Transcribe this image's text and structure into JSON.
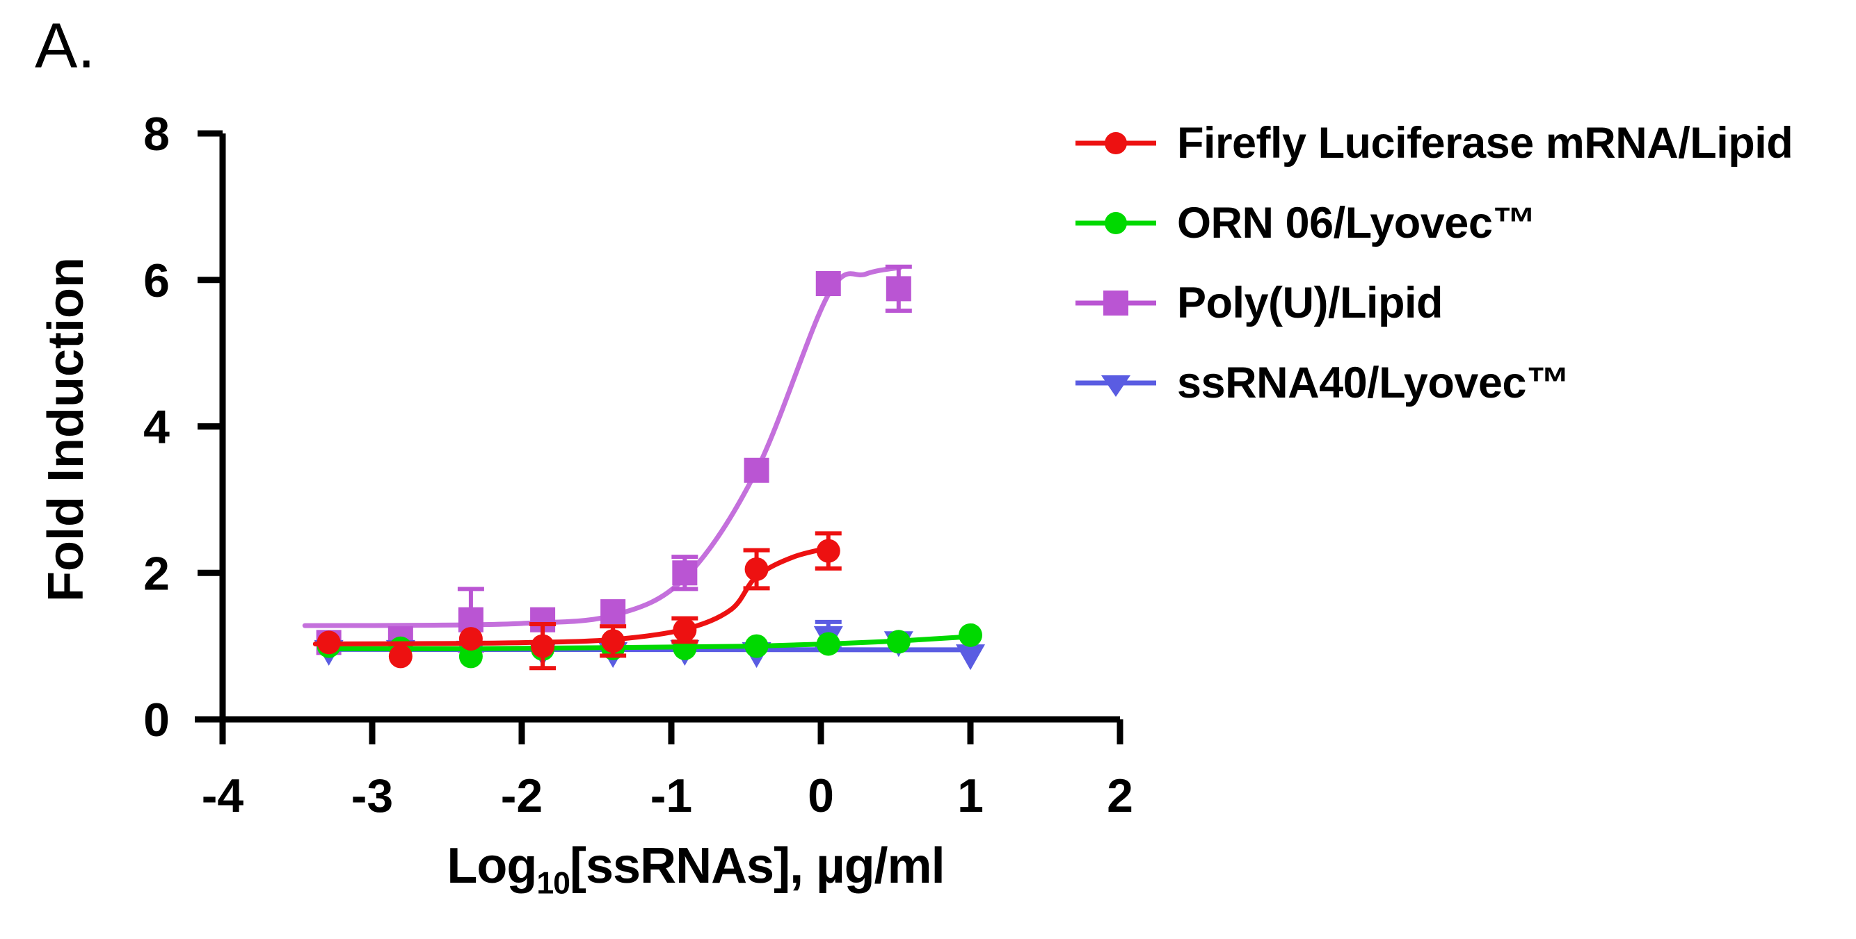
{
  "figure": {
    "panel_label": "A.",
    "background": "#ffffff"
  },
  "chart_data": {
    "type": "scatter",
    "title": "",
    "ylabel": "Fold Induction",
    "xlabel_parts": {
      "prefix": "Log",
      "sub": "10",
      "suffix": "[ssRNAs], µg/ml"
    },
    "x_axis": {
      "min": -4,
      "max": 2,
      "ticks": [
        -4,
        -3,
        -2,
        -1,
        0,
        1,
        2
      ]
    },
    "y_axis": {
      "min": 0,
      "max": 8,
      "ticks": [
        0,
        2,
        4,
        6,
        8
      ]
    },
    "grid": false,
    "legend_position": "right",
    "series": [
      {
        "name": "Firefly Luciferase mRNA/Lipid",
        "color": "#ED1111",
        "marker": "circle",
        "x": [
          -3.29,
          -2.81,
          -2.34,
          -1.86,
          -1.39,
          -0.91,
          -0.43,
          0.05
        ],
        "y": [
          1.05,
          0.86,
          1.1,
          1.0,
          1.07,
          1.22,
          2.05,
          2.3
        ],
        "err": [
          0,
          0,
          0,
          0.3,
          0.2,
          0.16,
          0.26,
          0.24
        ],
        "fit": {
          "type": "smooth",
          "points": [
            [
              -3.38,
              1.03
            ],
            [
              -2.6,
              1.035
            ],
            [
              -1.95,
              1.05
            ],
            [
              -1.39,
              1.09
            ],
            [
              -0.91,
              1.23
            ],
            [
              -0.6,
              1.5
            ],
            [
              -0.43,
              1.95
            ],
            [
              -0.18,
              2.22
            ],
            [
              0.1,
              2.36
            ]
          ]
        }
      },
      {
        "name": "ORN 06/Lyovec™",
        "color": "#00D900",
        "marker": "circle",
        "x": [
          -3.29,
          -2.81,
          -2.34,
          -1.86,
          -1.39,
          -0.91,
          -0.43,
          0.05,
          0.52,
          1.0
        ],
        "y": [
          1.0,
          0.97,
          0.86,
          0.96,
          0.97,
          0.97,
          1.0,
          1.03,
          1.06,
          1.15
        ],
        "err": [
          0,
          0,
          0,
          0,
          0,
          0,
          0,
          0,
          0,
          0
        ],
        "fit": {
          "type": "linear",
          "points": [
            [
              -3.35,
              0.965
            ],
            [
              -2.34,
              0.965
            ],
            [
              -1.39,
              0.98
            ],
            [
              -0.43,
              1.0
            ],
            [
              0.05,
              1.03
            ],
            [
              0.52,
              1.07
            ],
            [
              1.0,
              1.13
            ]
          ]
        }
      },
      {
        "name": "Poly(U)/Lipid",
        "color": "#BA55D3",
        "line_color": "#C470DC",
        "marker": "square",
        "x": [
          -3.29,
          -2.81,
          -2.34,
          -1.86,
          -1.39,
          -0.91,
          -0.43,
          0.05,
          0.52
        ],
        "y": [
          1.05,
          1.1,
          1.36,
          1.36,
          1.47,
          2.0,
          3.4,
          5.95,
          5.88
        ],
        "err": [
          0,
          0,
          0.42,
          0,
          0,
          0.22,
          0,
          0,
          0.3
        ],
        "fit": {
          "type": "smooth",
          "points": [
            [
              -3.45,
              1.28
            ],
            [
              -2.7,
              1.285
            ],
            [
              -2.0,
              1.31
            ],
            [
              -1.39,
              1.42
            ],
            [
              -0.91,
              1.93
            ],
            [
              -0.43,
              3.4
            ],
            [
              0.05,
              5.8
            ],
            [
              0.3,
              6.08
            ],
            [
              0.53,
              6.17
            ]
          ]
        }
      },
      {
        "name": "ssRNA40/Lyovec™",
        "color": "#5A5CE2",
        "marker": "triangle-down",
        "x": [
          -3.29,
          -2.81,
          -2.34,
          -1.86,
          -1.39,
          -0.91,
          -0.43,
          0.05,
          0.52,
          1.0
        ],
        "y": [
          0.96,
          0.96,
          0.95,
          0.95,
          0.93,
          0.96,
          0.93,
          1.15,
          1.08,
          0.9
        ],
        "err": [
          0,
          0,
          0,
          0,
          0,
          0,
          0,
          0.18,
          0,
          0
        ],
        "fit": {
          "type": "linear",
          "points": [
            [
              -3.35,
              0.955
            ],
            [
              1.0,
              0.95
            ]
          ]
        }
      }
    ]
  }
}
